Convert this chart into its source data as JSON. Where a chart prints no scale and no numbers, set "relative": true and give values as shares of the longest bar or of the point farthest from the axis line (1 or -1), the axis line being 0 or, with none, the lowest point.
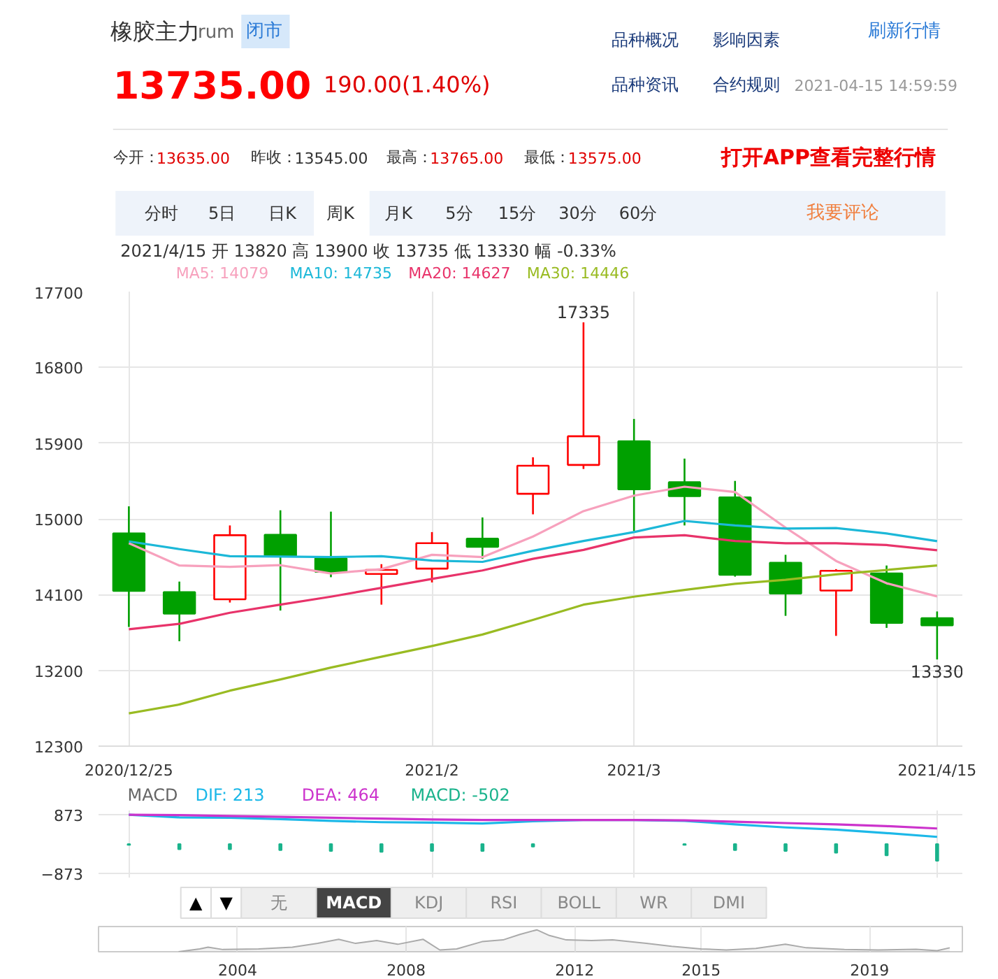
{
  "chart_data": [
    {
      "type": "other",
      "annotations": [
        "橡胶主力",
        "rum",
        "闭市",
        "13735.00",
        "190.00(1.40%)",
        "品种概况",
        "影响因素",
        "刷新行情",
        "品种资讯",
        "合约规则",
        "2021-04-15 14:59:59",
        "今开：",
        "13635.00",
        "昨收：",
        "13545.00",
        "最高：",
        "13765.00",
        "最低：",
        "13575.00",
        "打开APP查看完整行情",
        "分时",
        "5日",
        "日K",
        "周K",
        "月K",
        "5分",
        "15分",
        "30分",
        "60分",
        "我要评论"
      ]
    },
    {
      "type": "candlestick",
      "subtitle": "2021/4/15  开 13820  高 13900  收 13735  低 13330  幅 -0.33%",
      "categories": [
        "2020/12/25",
        null,
        null,
        null,
        null,
        null,
        "2021/2",
        null,
        null,
        null,
        "2021/3",
        null,
        null,
        null,
        null,
        null,
        "2021/4/15"
      ],
      "ohlc": [
        [
          14827,
          15149,
          13716,
          14144
        ],
        [
          14129,
          14255,
          13546,
          13875
        ],
        [
          14044,
          14922,
          14006,
          14806
        ],
        [
          14811,
          15102,
          13911,
          14562
        ],
        [
          14530,
          15086,
          14307,
          14371
        ],
        [
          14346,
          14462,
          13981,
          14393
        ],
        [
          14409,
          14843,
          14245,
          14711
        ],
        [
          14764,
          15017,
          14525,
          14668
        ],
        [
          15298,
          15732,
          15054,
          15632
        ],
        [
          15641,
          17335,
          15593,
          15981
        ],
        [
          15922,
          16187,
          14854,
          15351
        ],
        [
          15435,
          15716,
          14922,
          15271
        ],
        [
          15256,
          15451,
          14314,
          14335
        ],
        [
          14478,
          14573,
          13848,
          14113
        ],
        [
          14149,
          14403,
          13610,
          14383
        ],
        [
          14351,
          14446,
          13705,
          13764
        ],
        [
          13820,
          13900,
          13330,
          13735
        ]
      ],
      "colors": [
        "#00a000",
        "#00a000",
        "#ff0000",
        "#00a000",
        "#00a000",
        "#ff0000",
        "#ff0000",
        "#00a000",
        "#ff0000",
        "#ff0000",
        "#00a000",
        "#00a000",
        "#00a000",
        "#00a000",
        "#ff0000",
        "#00a000",
        "#00a000"
      ],
      "series": [
        {
          "type": "line",
          "name": "MA5: 14079",
          "color": "#f7a1bd",
          "values": [
            14711,
            14446,
            14430,
            14450,
            14351,
            14403,
            14573,
            14546,
            14790,
            15092,
            15276,
            15382,
            15319,
            14896,
            14500,
            14235,
            14079
          ]
        },
        {
          "type": "line",
          "name": "MA10: 14735",
          "color": "#1cb8d8",
          "values": [
            14732,
            14641,
            14557,
            14552,
            14546,
            14557,
            14505,
            14489,
            14621,
            14737,
            14843,
            14975,
            14922,
            14885,
            14891,
            14827,
            14735
          ]
        },
        {
          "type": "line",
          "name": "MA20: 14627",
          "color": "#e8336a",
          "values": [
            13689,
            13753,
            13885,
            13981,
            14076,
            14181,
            14287,
            14387,
            14525,
            14631,
            14779,
            14806,
            14737,
            14711,
            14711,
            14689,
            14627
          ]
        },
        {
          "type": "line",
          "name": "MA30: 14446",
          "color": "#99bb22",
          "values": [
            12689,
            12795,
            12959,
            13092,
            13234,
            13362,
            13489,
            13626,
            13800,
            13981,
            14076,
            14156,
            14229,
            14276,
            14340,
            14393,
            14446
          ]
        }
      ],
      "annotations": [
        {
          "text": "17335",
          "y": 17335
        },
        {
          "text": "13330",
          "y": 13330
        }
      ],
      "ylim": [
        12300,
        17700
      ],
      "yticks": [
        12300,
        13200,
        14100,
        15000,
        15900,
        16800,
        17700
      ],
      "grid": true,
      "legend": "top left"
    },
    {
      "type": "line",
      "title": "MACD",
      "categories": [
        "2020/12/25",
        null,
        null,
        null,
        null,
        null,
        "2021/2",
        null,
        null,
        null,
        "2021/3",
        null,
        null,
        null,
        null,
        null,
        "2021/4/15"
      ],
      "series": [
        {
          "name": "DIF: 213",
          "color": "#1cb8e8",
          "values": [
            873,
            795,
            782,
            743,
            691,
            651,
            638,
            612,
            677,
            717,
            717,
            691,
            586,
            495,
            430,
            326,
            213
          ]
        },
        {
          "name": "DEA: 464",
          "color": "#cc33cc",
          "values": [
            873,
            860,
            834,
            808,
            782,
            756,
            730,
            717,
            717,
            717,
            717,
            704,
            665,
            625,
            586,
            534,
            464
          ]
        },
        {
          "type": "bar",
          "name": "MACD: -502",
          "color": "#1ab38c",
          "values": [
            -26,
            -156,
            -156,
            -182,
            -208,
            -235,
            -208,
            -208,
            -78,
            null,
            null,
            -26,
            -182,
            -208,
            -261,
            -339,
            -502
          ]
        }
      ],
      "ylim": [
        -1000,
        1000
      ],
      "yticks": [
        -873,
        873
      ],
      "grid": true,
      "tick_labels": "y",
      "legend": "top left"
    },
    {
      "type": "other",
      "annotations": [
        "▲",
        "▼",
        "无",
        "MACD",
        "KDJ",
        "RSI",
        "BOLL",
        "WR",
        "DMI"
      ]
    },
    {
      "type": "area",
      "relative": true,
      "color": "#aaaaaa",
      "x": [
        2002.6,
        2003.1,
        2003.3,
        2003.65,
        2004.5,
        2005.3,
        2005.9,
        2006.4,
        2006.8,
        2007.3,
        2007.8,
        2008.4,
        2008.8,
        2009.2,
        2009.8,
        2010.3,
        2010.7,
        2011.1,
        2011.4,
        2011.8,
        2012.4,
        2012.9,
        2013.7,
        2014.3,
        2015.0,
        2015.6,
        2016.3,
        2017.0,
        2017.5,
        2018.4,
        2019.2,
        2020.1,
        2020.6,
        2020.9
      ],
      "values": [
        0,
        0.13,
        0.21,
        0.1,
        0.13,
        0.21,
        0.38,
        0.57,
        0.38,
        0.51,
        0.34,
        0.57,
        0.08,
        0.13,
        0.46,
        0.54,
        0.79,
        1,
        0.74,
        0.54,
        0.51,
        0.54,
        0.38,
        0.25,
        0.13,
        0.08,
        0.15,
        0.34,
        0.18,
        0.1,
        0.08,
        0.11,
        0.05,
        0.18
      ],
      "xlim": [
        2000.7,
        2021.2
      ],
      "xticks": [
        2004,
        2008,
        2012,
        2015,
        2019
      ],
      "grid": "x",
      "tick_labels": "x"
    }
  ]
}
